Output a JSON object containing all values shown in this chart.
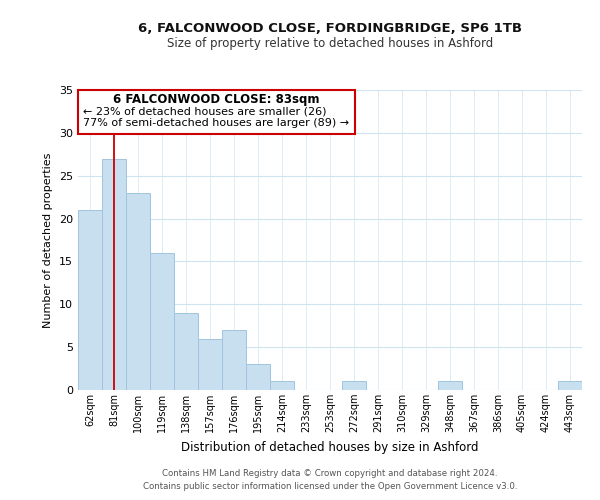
{
  "title": "6, FALCONWOOD CLOSE, FORDINGBRIDGE, SP6 1TB",
  "subtitle": "Size of property relative to detached houses in Ashford",
  "xlabel": "Distribution of detached houses by size in Ashford",
  "ylabel": "Number of detached properties",
  "bar_labels": [
    "62sqm",
    "81sqm",
    "100sqm",
    "119sqm",
    "138sqm",
    "157sqm",
    "176sqm",
    "195sqm",
    "214sqm",
    "233sqm",
    "253sqm",
    "272sqm",
    "291sqm",
    "310sqm",
    "329sqm",
    "348sqm",
    "367sqm",
    "386sqm",
    "405sqm",
    "424sqm",
    "443sqm"
  ],
  "bar_values": [
    21,
    27,
    23,
    16,
    9,
    6,
    7,
    3,
    1,
    0,
    0,
    1,
    0,
    0,
    0,
    1,
    0,
    0,
    0,
    0,
    1
  ],
  "bar_color": "#c8dff0",
  "bar_edge_color": "#a0c4df",
  "vline_x": 1,
  "vline_color": "#cc0000",
  "ylim": [
    0,
    35
  ],
  "yticks": [
    0,
    5,
    10,
    15,
    20,
    25,
    30,
    35
  ],
  "annotation_title": "6 FALCONWOOD CLOSE: 83sqm",
  "annotation_line1": "← 23% of detached houses are smaller (26)",
  "annotation_line2": "77% of semi-detached houses are larger (89) →",
  "annotation_box_color": "#ffffff",
  "annotation_box_edge": "#cc0000",
  "footer_line1": "Contains HM Land Registry data © Crown copyright and database right 2024.",
  "footer_line2": "Contains public sector information licensed under the Open Government Licence v3.0.",
  "background_color": "#ffffff",
  "grid_color": "#d0e4f0"
}
